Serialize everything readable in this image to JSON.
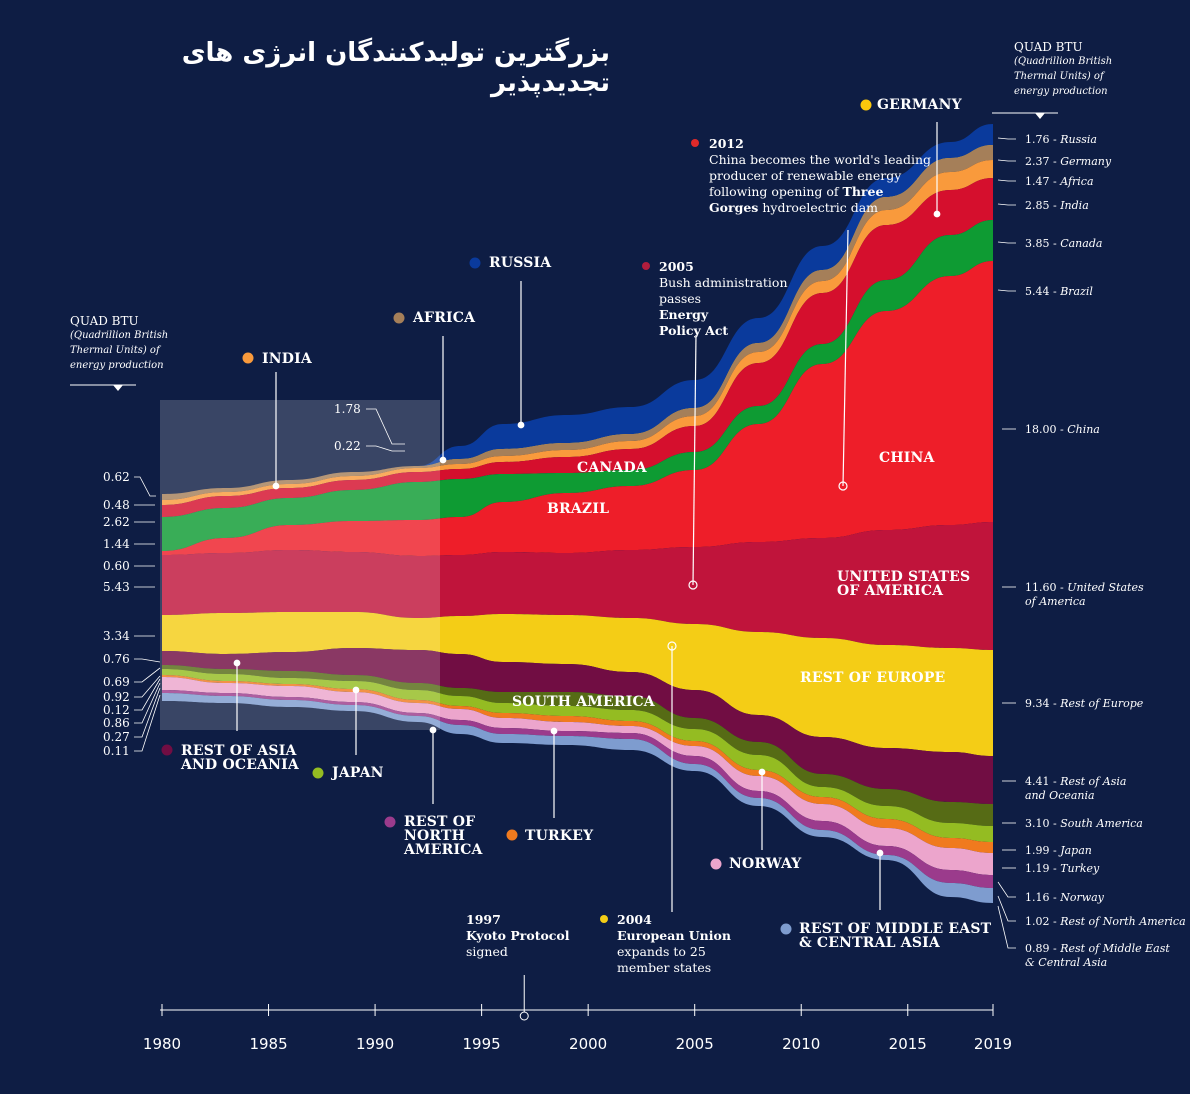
{
  "title": "بزرگترین تولیدکنندگان انرژی های تجدیدپذیر",
  "unit_left": {
    "title": "QUAD BTU",
    "sub": "(Quadrillion British Thermal Units) of energy production"
  },
  "unit_right": {
    "title": "QUAD BTU",
    "sub": "(Quadrillion British Thermal Units) of energy production"
  },
  "annotations": {
    "y1997": {
      "year": "1997",
      "line1": "Kyoto Protocol",
      "line2": "signed"
    },
    "y2004": {
      "year": "2004",
      "line1": "European Union",
      "line2": "expands to 25",
      "line3": "member states"
    },
    "y2005": {
      "year": "2005",
      "line1": "Bush administration",
      "line2": "passes",
      "bold": "Energy Policy Act"
    },
    "y2012": {
      "year": "2012",
      "line1": "China becomes the world's leading",
      "line2": "producer of renewable energy",
      "line3": "following opening of",
      "bold1": "Three",
      "bold2": "Gorges",
      "line4": "hydroelectric dam"
    }
  },
  "chart_data": {
    "type": "area",
    "stacking": "stacked (streamgraph)",
    "x_label": "",
    "x_ticks": [
      1980,
      1985,
      1990,
      1995,
      2000,
      2005,
      2010,
      2015,
      2019
    ],
    "unit": "QUAD BTU",
    "series": [
      {
        "name": "REST OF MIDDLE EAST & CENTRAL ASIA",
        "color": "#7e9ccf",
        "start": 0.11,
        "end": 0.89,
        "end_label": "0.89 - Rest of Middle East & Central Asia"
      },
      {
        "name": "REST OF NORTH AMERICA",
        "color": "#9b3b8c",
        "start": 0.27,
        "end": 1.02,
        "end_label": "1.02 - Rest of North America"
      },
      {
        "name": "NORWAY",
        "color": "#eca5cc",
        "start": 0.86,
        "end": 1.16,
        "end_label": "1.16 - Norway"
      },
      {
        "name": "TURKEY",
        "color": "#f07a1e",
        "start": 0.12,
        "end": 1.19,
        "end_label": "1.19 - Turkey"
      },
      {
        "name": "JAPAN",
        "color": "#94bc22",
        "start": 0.92,
        "end": 1.99,
        "end_label": "1.99 - Japan"
      },
      {
        "name": "SOUTH AMERICA",
        "color": "#566b15",
        "start": 0.69,
        "end": 3.1,
        "end_label": "3.10 - South America"
      },
      {
        "name": "REST OF ASIA AND OCEANIA",
        "color": "#710d43",
        "start": 0.76,
        "end": 4.41,
        "end_label": "4.41 - Rest of Asia and Oceania"
      },
      {
        "name": "REST OF EUROPE",
        "color": "#f4cd16",
        "start": 3.34,
        "end": 9.34,
        "end_label": "9.34 - Rest of Europe"
      },
      {
        "name": "UNITED STATES OF AMERICA",
        "color": "#c0143b",
        "start": 5.43,
        "end": 11.6,
        "end_label": "11.60 - United States of America"
      },
      {
        "name": "CHINA",
        "color": "#ee1e29",
        "start": 0.6,
        "end": 18.0,
        "end_label": "18.00 - China"
      },
      {
        "name": "BRAZIL",
        "color": "#0e9b33",
        "start": 1.44,
        "end": 5.44,
        "end_label": "5.44 - Brazil"
      },
      {
        "name": "CANADA",
        "color": "#d50f2d",
        "start": 2.62,
        "end": 3.85,
        "end_label": "3.85 - Canada"
      },
      {
        "name": "INDIA",
        "color": "#f99a3c",
        "start": 0.48,
        "end": 2.85,
        "end_label": "2.85 - India"
      },
      {
        "name": "AFRICA",
        "color": "#a57f59",
        "start": 0.62,
        "end": 1.47,
        "end_label": "1.47 - Africa"
      },
      {
        "name": "GERMANY",
        "color": "#fbc80c",
        "start": 0.22,
        "end": 2.37,
        "end_label": "2.37 - Germany"
      },
      {
        "name": "RUSSIA",
        "color": "#0a3a9c",
        "start": 1.78,
        "end": 1.76,
        "end_label": "1.76 - Russia"
      }
    ],
    "left_values_top_to_bottom": [
      "1.78",
      "0.22",
      "0.62",
      "0.48",
      "2.62",
      "1.44",
      "0.60",
      "5.43",
      "3.34",
      "0.76",
      "0.69",
      "0.92",
      "0.12",
      "0.86",
      "0.27",
      "0.11"
    ],
    "callouts": {
      "india": "INDIA",
      "africa": "AFRICA",
      "russia": "RUSSIA",
      "germany": "GERMANY",
      "canada": "CANADA",
      "brazil": "BRAZIL",
      "china": "CHINA",
      "usa": "UNITED STATES\nOF AMERICA",
      "rest_europe": "REST OF EUROPE",
      "south_america": "SOUTH AMERICA",
      "rest_asia": "REST OF ASIA\nAND OCEANIA",
      "japan": "JAPAN",
      "rest_na": "REST OF\nNORTH\nAMERICA",
      "turkey": "TURKEY",
      "norway": "NORWAY",
      "rest_me": "REST OF MIDDLE EAST\n& CENTRAL ASIA"
    }
  }
}
